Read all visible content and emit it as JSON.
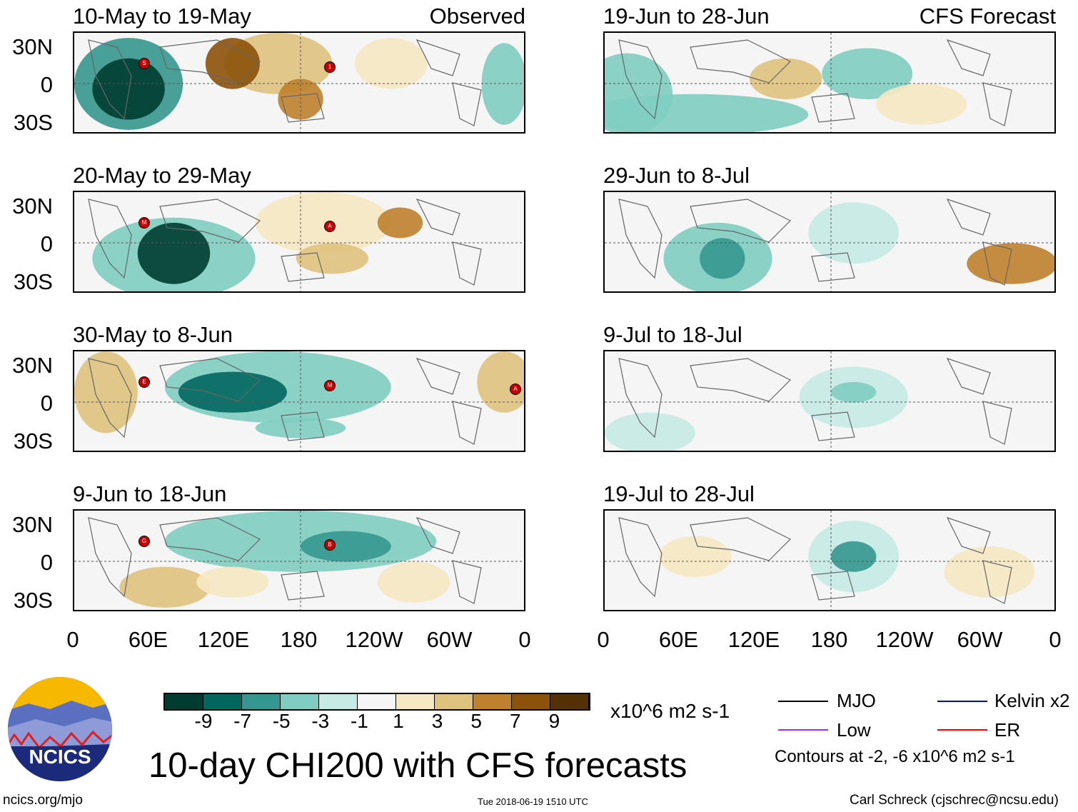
{
  "panels": [
    {
      "title": "10-May to 19-May",
      "tag": "Observed",
      "storms": [
        "S",
        "1"
      ]
    },
    {
      "title": "19-Jun to 28-Jun",
      "tag": "CFS Forecast",
      "storms": []
    },
    {
      "title": "20-May to 29-May",
      "storms": [
        "M",
        "A"
      ]
    },
    {
      "title": "29-Jun to 8-Jul",
      "storms": []
    },
    {
      "title": "30-May to 8-Jun",
      "storms": [
        "E",
        "M",
        "A"
      ]
    },
    {
      "title": "9-Jul to 18-Jul",
      "storms": []
    },
    {
      "title": "9-Jun to 18-Jun",
      "storms": [
        "G",
        "B"
      ]
    },
    {
      "title": "19-Jul to 28-Jul",
      "storms": []
    }
  ],
  "lat_labels": [
    "30N",
    "0",
    "30S"
  ],
  "lon_labels": [
    "0",
    "60E",
    "120E",
    "180",
    "120W",
    "60W",
    "0"
  ],
  "colorbar": {
    "labels": [
      "-9",
      "-7",
      "-5",
      "-3",
      "-1",
      "1",
      "3",
      "5",
      "7",
      "9"
    ],
    "colors": [
      "#003c30",
      "#01665e",
      "#35978f",
      "#80cdc1",
      "#c7eae5",
      "#f5f5f5",
      "#f6e8c3",
      "#dfc27d",
      "#bf812d",
      "#8c510a",
      "#543005"
    ],
    "units": "x10^6 m2 s-1"
  },
  "legend": {
    "items": [
      {
        "label": "MJO",
        "color": "#000000"
      },
      {
        "label": "Low",
        "color": "#9b30ff"
      },
      {
        "label": "Kelvin x2",
        "color": "#0000ff"
      },
      {
        "label": "ER",
        "color": "#ff0000"
      }
    ],
    "note": "Contours at -2, -6 x10^6 m2 s-1"
  },
  "main_title": "10-day CHI200 with CFS forecasts",
  "logo_text": "NCICS",
  "footer": {
    "left": "ncics.org/mjo",
    "center": "Tue 2018-06-19 1510 UTC",
    "right": "Carl Schreck (cjschrec@ncsu.edu)"
  }
}
